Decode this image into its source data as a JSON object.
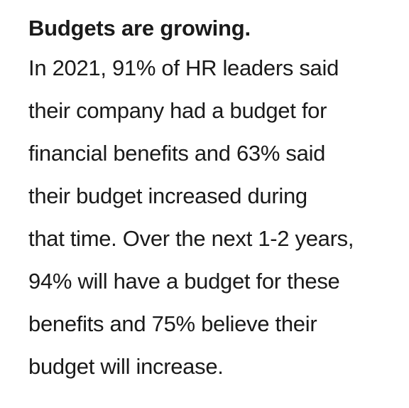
{
  "heading": "Budgets are growing.",
  "body": {
    "lines": [
      "In 2021, 91% of HR leaders said",
      "their company had a budget for",
      "financial benefits and 63% said",
      "their budget increased during",
      "that time. Over the next 1-2 years,",
      "94% will have a budget for these",
      "benefits and 75% believe their",
      "budget will increase."
    ]
  }
}
